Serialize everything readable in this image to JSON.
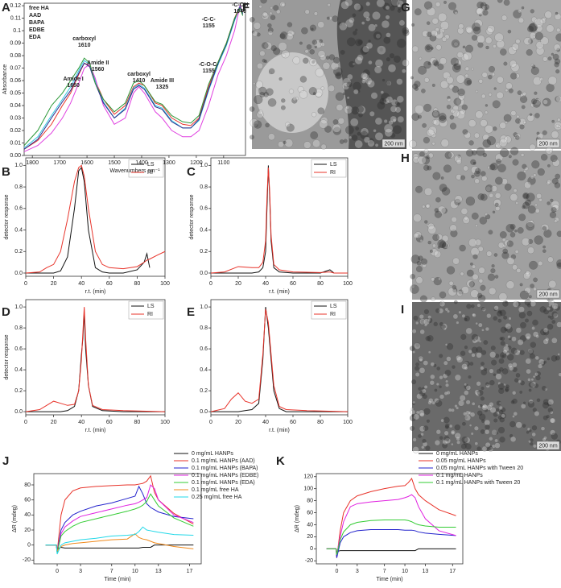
{
  "chart_data": [
    {
      "panel": "A",
      "type": "line",
      "x_label": "Wavenumbers cm⁻¹",
      "y_label": "Absorbance",
      "legend": "upper left",
      "x": [
        1830,
        1780,
        1730,
        1690,
        1660,
        1630,
        1610,
        1590,
        1570,
        1540,
        1500,
        1460,
        1430,
        1410,
        1390,
        1350,
        1325,
        1290,
        1250,
        1220,
        1190,
        1155,
        1120,
        1090,
        1060,
        1040,
        1030
      ],
      "xlim": [
        1830,
        1020
      ],
      "xticks": [
        1800,
        1700,
        1600,
        1500,
        1400,
        1300,
        1200,
        1100
      ],
      "ylim": [
        0,
        0.122
      ],
      "yticks": [
        {
          "value": 0,
          "label": "0.00"
        },
        0.01,
        0.02,
        0.03,
        0.04,
        0.05,
        0.06,
        0.07,
        0.08,
        0.09,
        0.1,
        0.11,
        0.12
      ],
      "series": [
        {
          "name": "free HA",
          "color": "#e8332a",
          "values": [
            0.005,
            0.012,
            0.025,
            0.04,
            0.05,
            0.065,
            0.074,
            0.072,
            0.06,
            0.045,
            0.033,
            0.04,
            0.055,
            0.058,
            0.056,
            0.042,
            0.04,
            0.03,
            0.025,
            0.024,
            0.03,
            0.055,
            0.075,
            0.09,
            0.11,
            0.12,
            0.115
          ]
        },
        {
          "name": "AAD",
          "color": "#36c8e0",
          "values": [
            0.006,
            0.015,
            0.032,
            0.045,
            0.055,
            0.068,
            0.076,
            0.073,
            0.06,
            0.043,
            0.03,
            0.038,
            0.054,
            0.057,
            0.054,
            0.04,
            0.038,
            0.028,
            0.022,
            0.022,
            0.028,
            0.052,
            0.073,
            0.088,
            0.108,
            0.12,
            0.114
          ]
        },
        {
          "name": "BAPA",
          "color": "#e040e0",
          "values": [
            0.003,
            0.008,
            0.018,
            0.03,
            0.042,
            0.058,
            0.07,
            0.073,
            0.062,
            0.04,
            0.025,
            0.03,
            0.05,
            0.055,
            0.05,
            0.035,
            0.03,
            0.02,
            0.015,
            0.015,
            0.02,
            0.04,
            0.065,
            0.08,
            0.1,
            0.12,
            0.113
          ]
        },
        {
          "name": "EDBE",
          "color": "#2a2a8c",
          "values": [
            0.005,
            0.013,
            0.03,
            0.043,
            0.052,
            0.066,
            0.074,
            0.071,
            0.058,
            0.042,
            0.03,
            0.037,
            0.053,
            0.056,
            0.053,
            0.039,
            0.037,
            0.027,
            0.022,
            0.022,
            0.029,
            0.053,
            0.074,
            0.089,
            0.109,
            0.119,
            0.113
          ]
        },
        {
          "name": "EDA",
          "color": "#2e9a3a",
          "values": [
            0.008,
            0.02,
            0.04,
            0.05,
            0.06,
            0.07,
            0.078,
            0.074,
            0.058,
            0.045,
            0.035,
            0.042,
            0.058,
            0.06,
            0.056,
            0.043,
            0.041,
            0.032,
            0.027,
            0.026,
            0.032,
            0.057,
            0.075,
            0.09,
            0.11,
            0.118,
            0.112
          ]
        }
      ],
      "annotations": [
        {
          "label": "Amide I",
          "value": 1650
        },
        {
          "label": "carboxyl",
          "value": 1610
        },
        {
          "label": "Amide II",
          "value": 1560
        },
        {
          "label": "carboxyl",
          "value": 1410
        },
        {
          "label": "Amide III",
          "value": 1325
        },
        {
          "label": "-C-O-C-",
          "value": 1155
        },
        {
          "label": "-C-C-",
          "value": 1155
        },
        {
          "label": "-C-OH",
          "value": 1040
        }
      ]
    },
    {
      "panel": "B",
      "type": "line",
      "x_label": "r.t. (min)",
      "y_label": "detector response",
      "legend": "upper right",
      "x": [
        0,
        10,
        15,
        20,
        25,
        30,
        35,
        38,
        40,
        42,
        45,
        50,
        55,
        60,
        70,
        80,
        85,
        87,
        89,
        95,
        100
      ],
      "xlim": [
        0,
        100
      ],
      "xticks": [
        0,
        20,
        40,
        60,
        80,
        100
      ],
      "ylim": [
        -0.03,
        1.07
      ],
      "yticks": [
        {
          "value": 0,
          "label": "0.0"
        },
        0.2,
        0.4,
        0.6,
        0.8,
        {
          "value": 1,
          "label": "1.0"
        }
      ],
      "series": [
        {
          "name": "LS",
          "color": "#111111",
          "values": [
            0,
            0,
            0,
            0,
            0.02,
            0.15,
            0.6,
            0.95,
            0.98,
            0.85,
            0.4,
            0.05,
            0.01,
            0,
            0,
            0.03,
            0.1,
            0.18,
            0.05,
            null,
            null
          ]
        },
        {
          "name": "RI",
          "color": "#e8332a",
          "values": [
            0,
            0.01,
            0.05,
            0.08,
            0.2,
            0.5,
            0.85,
            0.98,
            1.0,
            0.9,
            0.6,
            0.2,
            0.08,
            0.05,
            0.04,
            0.06,
            0.1,
            0.12,
            0.13,
            0.17,
            0.2
          ]
        }
      ]
    },
    {
      "panel": "C",
      "type": "line",
      "x_label": "r.t. (min)",
      "y_label": "detector response",
      "legend": "upper right",
      "x": [
        0,
        10,
        20,
        30,
        35,
        38,
        40,
        41,
        42,
        43,
        44,
        46,
        50,
        60,
        80,
        87,
        90,
        100
      ],
      "xlim": [
        0,
        100
      ],
      "xticks": [
        0,
        20,
        40,
        60,
        80,
        100
      ],
      "ylim": [
        -0.03,
        1.07
      ],
      "yticks": [
        {
          "value": 0,
          "label": "0.0"
        },
        0.2,
        0.4,
        0.6,
        0.8,
        {
          "value": 1,
          "label": "1.0"
        }
      ],
      "series": [
        {
          "name": "LS",
          "color": "#111111",
          "values": [
            0,
            0,
            0,
            0,
            0.01,
            0.05,
            0.2,
            0.6,
            1.0,
            0.7,
            0.3,
            0.05,
            0.01,
            0,
            0,
            0.03,
            0,
            0
          ]
        },
        {
          "name": "RI",
          "color": "#e8332a",
          "values": [
            0,
            0.01,
            0.06,
            0.05,
            0.05,
            0.1,
            0.3,
            0.7,
            0.98,
            0.75,
            0.35,
            0.08,
            0.03,
            0.01,
            0.005,
            0.01,
            0,
            0
          ]
        }
      ]
    },
    {
      "panel": "D",
      "type": "line",
      "x_label": "r.t. (min)",
      "y_label": "detector response",
      "legend": "upper right",
      "x": [
        0,
        10,
        15,
        20,
        25,
        30,
        35,
        38,
        40,
        41,
        42,
        43,
        45,
        48,
        55,
        70,
        100
      ],
      "xlim": [
        0,
        100
      ],
      "xticks": [
        0,
        20,
        40,
        60,
        80,
        100
      ],
      "ylim": [
        -0.03,
        1.07
      ],
      "yticks": [
        {
          "value": 0,
          "label": "0.0"
        },
        0.2,
        0.4,
        0.6,
        0.8,
        {
          "value": 1,
          "label": "1.0"
        }
      ],
      "series": [
        {
          "name": "LS",
          "color": "#111111",
          "values": [
            0,
            0,
            0,
            0,
            0,
            0.01,
            0.05,
            0.2,
            0.55,
            0.7,
            0.95,
            0.6,
            0.25,
            0.05,
            0.01,
            0,
            0
          ]
        },
        {
          "name": "RI",
          "color": "#e8332a",
          "values": [
            0,
            0.02,
            0.06,
            0.1,
            0.08,
            0.06,
            0.07,
            0.2,
            0.5,
            0.75,
            1.0,
            0.7,
            0.25,
            0.06,
            0.02,
            0.01,
            0
          ]
        }
      ]
    },
    {
      "panel": "E",
      "type": "line",
      "x_label": "r.t. (min)",
      "legend": "upper right",
      "x": [
        0,
        10,
        15,
        20,
        25,
        30,
        35,
        38,
        40,
        42,
        44,
        46,
        50,
        55,
        70,
        100
      ],
      "xlim": [
        0,
        100
      ],
      "xticks": [
        0,
        20,
        40,
        60,
        80,
        100
      ],
      "ylim": [
        -0.03,
        1.07
      ],
      "yticks": [
        {
          "value": 0,
          "label": "0.0"
        },
        0.2,
        0.4,
        0.6,
        0.8,
        {
          "value": 1,
          "label": "1.0"
        }
      ],
      "series": [
        {
          "name": "LS",
          "color": "#111111",
          "values": [
            0,
            0,
            0,
            0,
            0.01,
            0.02,
            0.08,
            0.5,
            1.0,
            0.8,
            0.5,
            0.2,
            0.03,
            0,
            0,
            0
          ]
        },
        {
          "name": "RI",
          "color": "#e8332a",
          "values": [
            0,
            0.03,
            0.12,
            0.18,
            0.1,
            0.08,
            0.12,
            0.55,
            0.98,
            0.85,
            0.55,
            0.25,
            0.05,
            0.02,
            0.01,
            0
          ]
        }
      ]
    },
    {
      "panel": "J",
      "type": "line",
      "x_label": "Time (min)",
      "y_label": "ΔR (mdeg)",
      "legend": "outside right",
      "x": [
        -1.5,
        -0.1,
        0,
        0.5,
        1,
        2,
        3,
        5,
        7,
        9,
        10,
        10.5,
        11,
        11.5,
        12,
        12.5,
        13,
        15,
        17.5
      ],
      "xlim": [
        -3,
        18.5
      ],
      "xticks": [
        0,
        3,
        7,
        10,
        13,
        17
      ],
      "ylim": [
        -25,
        95
      ],
      "yticks": [
        -20,
        0,
        20,
        40,
        60,
        80
      ],
      "series": [
        {
          "name": "0 mg/mL HANPs",
          "color": "#111111",
          "values": [
            0,
            0,
            -5,
            -3,
            -4,
            -4,
            -4,
            -4,
            -4,
            -4,
            -4,
            -4,
            -3,
            -3,
            -3,
            0,
            0,
            0,
            0
          ]
        },
        {
          "name": "0.1 mg/mL HANPs (AAD)",
          "color": "#e8332a",
          "values": [
            0,
            0,
            -10,
            40,
            60,
            72,
            76,
            78,
            79,
            80,
            80,
            81,
            82,
            85,
            92,
            70,
            60,
            42,
            28
          ]
        },
        {
          "name": "0.1 mg/mL HANPs (BAPA)",
          "color": "#2222cc",
          "values": [
            0,
            0,
            -10,
            20,
            30,
            40,
            45,
            52,
            56,
            62,
            65,
            78,
            68,
            55,
            50,
            47,
            44,
            38,
            35
          ]
        },
        {
          "name": "0.1 mg/mL HANPs (EDBE)",
          "color": "#e020e0",
          "values": [
            0,
            0,
            -10,
            15,
            24,
            32,
            38,
            43,
            48,
            53,
            55,
            57,
            60,
            63,
            80,
            75,
            60,
            40,
            30
          ]
        },
        {
          "name": "0.1 mg/mL HANPs (EDA)",
          "color": "#33cc33",
          "values": [
            0,
            0,
            -10,
            12,
            18,
            25,
            30,
            35,
            40,
            45,
            48,
            50,
            53,
            58,
            68,
            60,
            52,
            36,
            25
          ]
        },
        {
          "name": "0.1 mg/mL free HA",
          "color": "#f08a1c",
          "values": [
            0,
            0,
            -8,
            -2,
            0,
            2,
            3,
            5,
            7,
            8,
            15,
            10,
            8,
            7,
            5,
            3,
            2,
            -2,
            -5
          ]
        },
        {
          "name": "0.25 mg/mL free HA",
          "color": "#22d8e8",
          "values": [
            0,
            0,
            -12,
            0,
            3,
            5,
            7,
            9,
            12,
            13,
            14,
            18,
            24,
            20,
            19,
            18,
            17,
            14,
            13
          ]
        }
      ]
    },
    {
      "panel": "K",
      "type": "line",
      "x_label": "Time (min)",
      "y_label": "ΔR (mdeg)",
      "legend": "outside right",
      "x": [
        -1.5,
        -0.1,
        0,
        0.5,
        1,
        2,
        3,
        5,
        7,
        9,
        10,
        10.5,
        11,
        11.5,
        12,
        13,
        15,
        17.5
      ],
      "xlim": [
        -3,
        18.5
      ],
      "xticks": [
        0,
        3,
        7,
        10,
        13,
        17
      ],
      "ylim": [
        -25,
        125
      ],
      "yticks": [
        -20,
        0,
        20,
        40,
        60,
        80,
        100,
        120
      ],
      "series": [
        {
          "name": "0 mg/mL HANPs",
          "color": "#111111",
          "values": [
            0,
            0,
            -5,
            -3,
            -3,
            -3,
            -3,
            -3,
            -3,
            -3,
            -3,
            -3,
            -3,
            -3,
            0,
            0,
            0,
            0
          ]
        },
        {
          "name": "0.05 mg/mL HANPs",
          "color": "#e8332a",
          "values": [
            0,
            0,
            -15,
            30,
            60,
            80,
            88,
            95,
            100,
            104,
            105,
            110,
            117,
            100,
            90,
            80,
            65,
            55
          ]
        },
        {
          "name": "0.05 mg/mL HANPs with Tween 20",
          "color": "#2222cc",
          "values": [
            0,
            0,
            -15,
            10,
            20,
            27,
            30,
            32,
            32,
            32,
            31,
            31,
            31,
            30,
            28,
            26,
            24,
            22
          ]
        },
        {
          "name": "0.1 mg/mL HANPs",
          "color": "#e020e0",
          "values": [
            0,
            0,
            -10,
            20,
            45,
            70,
            75,
            78,
            80,
            82,
            85,
            87,
            90,
            85,
            70,
            50,
            30,
            22
          ]
        },
        {
          "name": "0.1 mg/mL HANPs with Tween 20",
          "color": "#33cc33",
          "values": [
            0,
            0,
            -10,
            15,
            28,
            40,
            44,
            47,
            48,
            48,
            48,
            47,
            45,
            42,
            40,
            38,
            36,
            36
          ]
        }
      ]
    }
  ],
  "images": [
    {
      "panel": "F",
      "scale_bar": "200 nm"
    },
    {
      "panel": "G",
      "scale_bar": "200 nm"
    },
    {
      "panel": "H",
      "scale_bar": "200 nm"
    },
    {
      "panel": "I",
      "scale_bar": "200 nm"
    }
  ]
}
